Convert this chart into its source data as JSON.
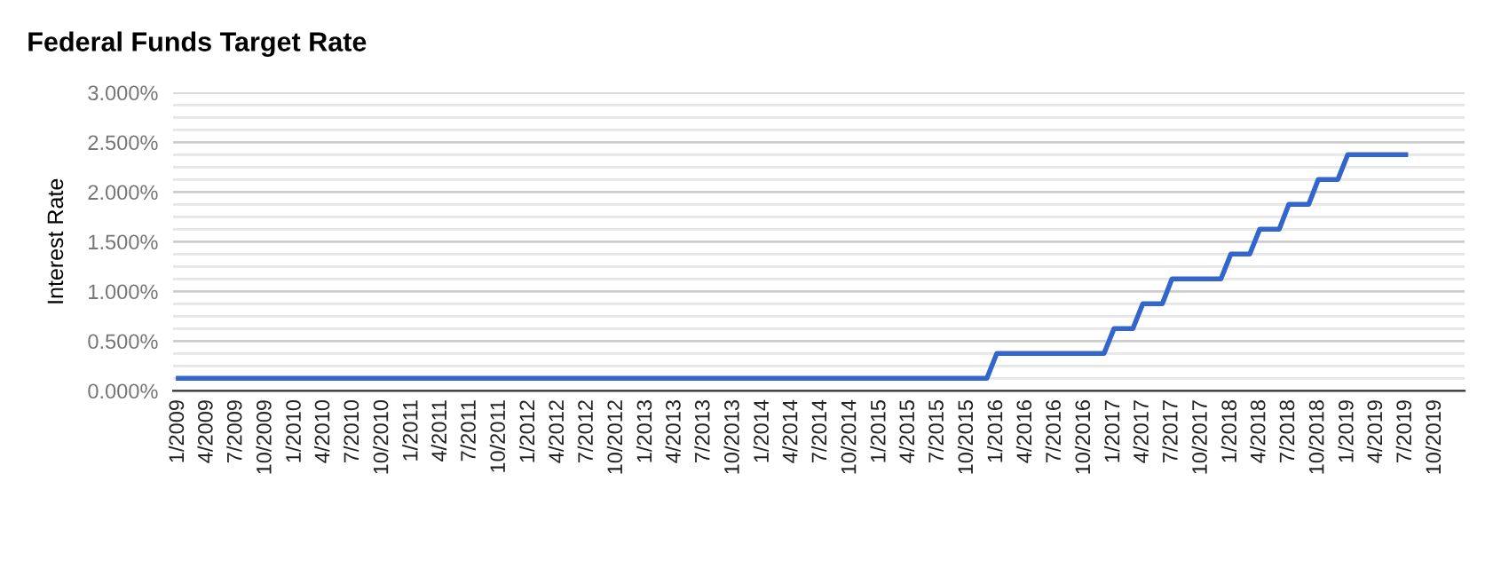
{
  "chart_data": {
    "type": "line",
    "title": "Federal Funds Target Rate",
    "ylabel": "Interest Rate",
    "series": [
      {
        "color": "#3366cc",
        "x": [
          "2009-01",
          "2015-12",
          "2016-01",
          "2016-12",
          "2017-01",
          "2017-03",
          "2017-04",
          "2017-06",
          "2017-07",
          "2017-12",
          "2018-01",
          "2018-03",
          "2018-04",
          "2018-06",
          "2018-07",
          "2018-09",
          "2018-10",
          "2018-12",
          "2019-01",
          "2019-07"
        ],
        "values": [
          0.125,
          0.125,
          0.375,
          0.375,
          0.625,
          0.625,
          0.875,
          0.875,
          1.125,
          1.125,
          1.375,
          1.375,
          1.625,
          1.625,
          1.875,
          1.875,
          2.125,
          2.125,
          2.375,
          2.375
        ]
      }
    ],
    "xlim": [
      "2008-12-16",
      "2020-01-01"
    ],
    "xticks": [
      {
        "value": "2009-01",
        "label": "1/2009"
      },
      {
        "value": "2009-04",
        "label": "4/2009"
      },
      {
        "value": "2009-07",
        "label": "7/2009"
      },
      {
        "value": "2009-10",
        "label": "10/2009"
      },
      {
        "value": "2010-01",
        "label": "1/2010"
      },
      {
        "value": "2010-04",
        "label": "4/2010"
      },
      {
        "value": "2010-07",
        "label": "7/2010"
      },
      {
        "value": "2010-10",
        "label": "10/2010"
      },
      {
        "value": "2011-01",
        "label": "1/2011"
      },
      {
        "value": "2011-04",
        "label": "4/2011"
      },
      {
        "value": "2011-07",
        "label": "7/2011"
      },
      {
        "value": "2011-10",
        "label": "10/2011"
      },
      {
        "value": "2012-01",
        "label": "1/2012"
      },
      {
        "value": "2012-04",
        "label": "4/2012"
      },
      {
        "value": "2012-07",
        "label": "7/2012"
      },
      {
        "value": "2012-10",
        "label": "10/2012"
      },
      {
        "value": "2013-01",
        "label": "1/2013"
      },
      {
        "value": "2013-04",
        "label": "4/2013"
      },
      {
        "value": "2013-07",
        "label": "7/2013"
      },
      {
        "value": "2013-10",
        "label": "10/2013"
      },
      {
        "value": "2014-01",
        "label": "1/2014"
      },
      {
        "value": "2014-04",
        "label": "4/2014"
      },
      {
        "value": "2014-07",
        "label": "7/2014"
      },
      {
        "value": "2014-10",
        "label": "10/2014"
      },
      {
        "value": "2015-01",
        "label": "1/2015"
      },
      {
        "value": "2015-04",
        "label": "4/2015"
      },
      {
        "value": "2015-07",
        "label": "7/2015"
      },
      {
        "value": "2015-10",
        "label": "10/2015"
      },
      {
        "value": "2016-01",
        "label": "1/2016"
      },
      {
        "value": "2016-04",
        "label": "4/2016"
      },
      {
        "value": "2016-07",
        "label": "7/2016"
      },
      {
        "value": "2016-10",
        "label": "10/2016"
      },
      {
        "value": "2017-01",
        "label": "1/2017"
      },
      {
        "value": "2017-04",
        "label": "4/2017"
      },
      {
        "value": "2017-07",
        "label": "7/2017"
      },
      {
        "value": "2017-10",
        "label": "10/2017"
      },
      {
        "value": "2018-01",
        "label": "1/2018"
      },
      {
        "value": "2018-04",
        "label": "4/2018"
      },
      {
        "value": "2018-07",
        "label": "7/2018"
      },
      {
        "value": "2018-10",
        "label": "10/2018"
      },
      {
        "value": "2019-01",
        "label": "1/2019"
      },
      {
        "value": "2019-04",
        "label": "4/2019"
      },
      {
        "value": "2019-07",
        "label": "7/2019"
      },
      {
        "value": "2019-10",
        "label": "10/2019"
      }
    ],
    "ylim": [
      0,
      3
    ],
    "yticks": [
      {
        "value": 0,
        "label": "0.000%"
      },
      {
        "value": 0.125,
        "label": null
      },
      {
        "value": 0.25,
        "label": null
      },
      {
        "value": 0.375,
        "label": null
      },
      {
        "value": 0.5,
        "label": "0.500%"
      },
      {
        "value": 0.625,
        "label": null
      },
      {
        "value": 0.75,
        "label": null
      },
      {
        "value": 0.875,
        "label": null
      },
      {
        "value": 1,
        "label": "1.000%"
      },
      {
        "value": 1.125,
        "label": null
      },
      {
        "value": 1.25,
        "label": null
      },
      {
        "value": 1.375,
        "label": null
      },
      {
        "value": 1.5,
        "label": "1.500%"
      },
      {
        "value": 1.625,
        "label": null
      },
      {
        "value": 1.75,
        "label": null
      },
      {
        "value": 1.875,
        "label": null
      },
      {
        "value": 2,
        "label": "2.000%"
      },
      {
        "value": 2.125,
        "label": null
      },
      {
        "value": 2.25,
        "label": null
      },
      {
        "value": 2.375,
        "label": null
      },
      {
        "value": 2.5,
        "label": "2.500%"
      },
      {
        "value": 2.625,
        "label": null
      },
      {
        "value": 2.75,
        "label": null
      },
      {
        "value": 2.875,
        "label": null
      },
      {
        "value": 3,
        "label": "3.000%"
      }
    ],
    "grid": "y",
    "marker": "none",
    "line_style": "solid"
  }
}
